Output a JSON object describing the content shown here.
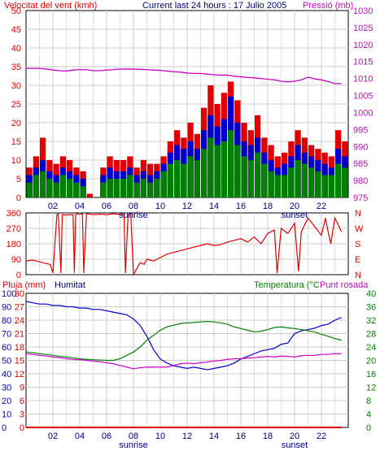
{
  "header": {
    "wind_title": "Velocitat del vent (kmh)",
    "center_title": "Current last 24 hours : 17 Julio 2005",
    "pressure_title": "Pressió (mb)"
  },
  "footer": {
    "rain_title": "Pluja (mm)",
    "humidity_title": "Humitat",
    "temp_title": "Temperatura (°C",
    "dew_title": "Punt rosada"
  },
  "colors": {
    "red": "#e00000",
    "green": "#008000",
    "blue": "#0000cc",
    "magenta": "#cc00cc",
    "grid": "#cccccc",
    "frame": "#000000"
  },
  "chart_data": [
    {
      "id": "wind_pressure",
      "type": "bar",
      "title": "Current last 24 hours : 17 Julio 2005",
      "x_ticks": [
        "02",
        "04",
        "06",
        "08",
        "10",
        "12",
        "14",
        "16",
        "18",
        "20",
        "22"
      ],
      "x_annotations": [
        {
          "hour": 8,
          "label": "sunrise"
        },
        {
          "hour": 20,
          "label": "sunset"
        }
      ],
      "xlim": [
        0,
        24
      ],
      "y_left": {
        "label": "Velocitat del vent (kmh)",
        "ylim": [
          0,
          50
        ],
        "ticks": [
          0,
          5,
          10,
          15,
          20,
          25,
          30,
          35,
          40,
          45,
          50
        ]
      },
      "y_right": {
        "label": "Pressió (mb)",
        "ylim": [
          975,
          1030
        ],
        "ticks": [
          975,
          980,
          985,
          990,
          995,
          1000,
          1005,
          1010,
          1015,
          1020,
          1025,
          1030
        ]
      },
      "x": [
        0,
        0.5,
        1,
        1.5,
        2,
        2.5,
        3,
        3.5,
        4,
        4.5,
        5,
        5.5,
        6,
        6.5,
        7,
        7.5,
        8,
        8.5,
        9,
        9.5,
        10,
        10.5,
        11,
        11.5,
        12,
        12.5,
        13,
        13.5,
        14,
        14.5,
        15,
        15.5,
        16,
        16.5,
        17,
        17.5,
        18,
        18.5,
        19,
        19.5,
        20,
        20.5,
        21,
        21.5,
        22,
        22.5,
        23,
        23.5
      ],
      "series": [
        {
          "name": "gust",
          "axis": "left",
          "color": "#e00000",
          "values": [
            8,
            11,
            16,
            10,
            9,
            11,
            10,
            8,
            7,
            1,
            0,
            8,
            11,
            10,
            10,
            11,
            8,
            10,
            9,
            9,
            11,
            15,
            18,
            16,
            20,
            17,
            24,
            30,
            25,
            28,
            31,
            26,
            20,
            18,
            22,
            16,
            14,
            11,
            12,
            15,
            18,
            16,
            14,
            13,
            12,
            11,
            18,
            15
          ]
        },
        {
          "name": "average",
          "axis": "left",
          "color": "#0000cc",
          "values": [
            6,
            8,
            10,
            7,
            6,
            8,
            7,
            6,
            5,
            0,
            0,
            6,
            8,
            7,
            7,
            8,
            6,
            7,
            6,
            7,
            9,
            12,
            14,
            13,
            15,
            13,
            18,
            22,
            19,
            21,
            27,
            20,
            15,
            14,
            16,
            12,
            10,
            8,
            9,
            11,
            14,
            12,
            11,
            10,
            9,
            8,
            13,
            11
          ]
        },
        {
          "name": "low",
          "axis": "left",
          "color": "#008000",
          "values": [
            4,
            6,
            7,
            5,
            4,
            6,
            5,
            4,
            3,
            0,
            0,
            4,
            5,
            5,
            5,
            6,
            4,
            5,
            4,
            5,
            7,
            9,
            10,
            9,
            11,
            10,
            13,
            16,
            14,
            15,
            18,
            14,
            11,
            10,
            12,
            9,
            7,
            6,
            6,
            8,
            10,
            9,
            8,
            7,
            6,
            6,
            9,
            8
          ]
        },
        {
          "name": "pressure",
          "axis": "right",
          "color": "#cc00cc",
          "type": "line",
          "values": [
            1013,
            1013,
            1013,
            1012.8,
            1012.5,
            1012.3,
            1012.2,
            1012.5,
            1012.6,
            1012.6,
            1012.3,
            1012.3,
            1012.5,
            1012.6,
            1012.8,
            1012.8,
            1012.8,
            1012.7,
            1012.6,
            1012.5,
            1012.4,
            1012.2,
            1012.0,
            1011.9,
            1011.6,
            1011.5,
            1011.5,
            1011.3,
            1011.1,
            1011.0,
            1011.0,
            1010.7,
            1010.5,
            1010.3,
            1010.2,
            1010.0,
            1009.8,
            1009.6,
            1009.2,
            1009.0,
            1009.2,
            1009.6,
            1010.4,
            1009.9,
            1009.6,
            1009.1,
            1008.5,
            1008.5
          ]
        }
      ]
    },
    {
      "id": "wind_direction",
      "type": "line",
      "xlim": [
        0,
        24
      ],
      "y_left": {
        "ylim": [
          0,
          360
        ],
        "ticks": [
          0,
          90,
          180,
          270,
          360
        ]
      },
      "y_right_labels": [
        "N",
        "W",
        "S",
        "E",
        "N"
      ],
      "series": [
        {
          "name": "direction",
          "color": "#e00000",
          "x": [
            0,
            0.5,
            1,
            1.5,
            1.8,
            2,
            2.3,
            2.4,
            2.6,
            2.7,
            3,
            3.5,
            3.6,
            3.7,
            3.8,
            4,
            4.2,
            4.3,
            4.5,
            5,
            5.5,
            6,
            6.5,
            7,
            7.3,
            7.4,
            7.6,
            7.8,
            8,
            8.5,
            8.8,
            9,
            9.5,
            10,
            10.5,
            11,
            11.5,
            12,
            12.5,
            13,
            13.5,
            14,
            14.5,
            15,
            15.5,
            16,
            16.5,
            17,
            17.5,
            18,
            18.5,
            18.7,
            19,
            19.5,
            20,
            20.3,
            20.5,
            21,
            21.5,
            22,
            22.3,
            22.5,
            22.7,
            23,
            23.5
          ],
          "values": [
            80,
            85,
            75,
            65,
            60,
            10,
            350,
            355,
            10,
            350,
            348,
            350,
            10,
            350,
            355,
            352,
            355,
            10,
            355,
            350,
            352,
            350,
            355,
            350,
            352,
            10,
            350,
            355,
            0,
            70,
            60,
            90,
            80,
            100,
            120,
            130,
            140,
            150,
            160,
            170,
            180,
            170,
            175,
            190,
            200,
            210,
            190,
            220,
            180,
            240,
            260,
            10,
            270,
            240,
            300,
            20,
            250,
            330,
            280,
            230,
            330,
            250,
            180,
            330,
            250
          ]
        }
      ]
    },
    {
      "id": "temp_humidity_rain",
      "type": "line",
      "x_ticks": [
        "02",
        "04",
        "06",
        "08",
        "10",
        "12",
        "14",
        "16",
        "18",
        "20",
        "22"
      ],
      "x_annotations": [
        {
          "hour": 8,
          "label": "sunrise"
        },
        {
          "hour": 20,
          "label": "sunset"
        }
      ],
      "xlim": [
        0,
        24
      ],
      "y_left_rain": {
        "label": "Pluja (mm)",
        "ylim": [
          0,
          30
        ],
        "ticks": [
          0,
          3,
          6,
          9,
          12,
          15,
          18,
          21,
          24,
          27,
          30
        ]
      },
      "y_left_humidity": {
        "label": "Humitat",
        "ylim": [
          0,
          100
        ],
        "ticks": [
          0,
          10,
          20,
          30,
          40,
          50,
          60,
          70,
          80,
          90,
          100
        ]
      },
      "y_right": {
        "label": "Temperatura (°C",
        "ylim": [
          0,
          40
        ],
        "ticks": [
          0,
          4,
          8,
          12,
          16,
          20,
          24,
          28,
          32,
          36,
          40
        ]
      },
      "x": [
        0,
        0.5,
        1,
        1.5,
        2,
        2.5,
        3,
        3.5,
        4,
        4.5,
        5,
        5.5,
        6,
        6.5,
        7,
        7.5,
        8,
        8.5,
        9,
        9.5,
        10,
        10.5,
        11,
        11.5,
        12,
        12.5,
        13,
        13.5,
        14,
        14.5,
        15,
        15.5,
        16,
        16.5,
        17,
        17.5,
        18,
        18.5,
        19,
        19.5,
        20,
        20.5,
        21,
        21.5,
        22,
        22.5,
        23,
        23.5
      ],
      "series": [
        {
          "name": "Humitat",
          "axis": "humidity",
          "color": "#0000cc",
          "values": [
            94,
            93,
            92,
            92,
            91,
            91,
            90,
            90,
            89,
            89,
            88,
            88,
            87,
            86,
            85,
            84,
            81,
            76,
            68,
            58,
            51,
            48,
            46,
            45,
            44,
            45,
            44,
            43,
            44,
            45,
            46,
            48,
            51,
            53,
            55,
            57,
            58,
            59,
            62,
            63,
            70,
            72,
            73,
            74,
            76,
            77,
            80,
            82
          ]
        },
        {
          "name": "Temperatura (°C",
          "axis": "right",
          "color": "#008000",
          "values": [
            22.5,
            22.3,
            22,
            21.8,
            21.5,
            21.2,
            21,
            20.8,
            20.5,
            20.3,
            20.2,
            20.1,
            20,
            20,
            20.5,
            21.5,
            22.5,
            24,
            26,
            27.5,
            29,
            30,
            30.5,
            31,
            31.2,
            31.3,
            31.5,
            31.6,
            31.5,
            31.2,
            30.8,
            30,
            29.5,
            29,
            28.5,
            28.7,
            29.2,
            29.8,
            30,
            29.7,
            29.5,
            29.2,
            28.8,
            28.5,
            27.8,
            27.2,
            26.5,
            26
          ]
        },
        {
          "name": "Punt rosada",
          "axis": "right",
          "color": "#cc00cc",
          "values": [
            22,
            21.8,
            21.5,
            21.3,
            21,
            20.8,
            20.5,
            20.3,
            20.2,
            20,
            19.8,
            19.6,
            19.3,
            19,
            18.5,
            18,
            17.5,
            17.8,
            18,
            18,
            18,
            18,
            18.5,
            19,
            19.2,
            19,
            19.3,
            19.5,
            19.8,
            20,
            20.3,
            20.5,
            20.5,
            20.7,
            20.8,
            21,
            21.2,
            21,
            21.3,
            21.2,
            21,
            21.4,
            21.5,
            21.5,
            21.8,
            21.8,
            22,
            22
          ]
        },
        {
          "name": "Pluja (mm)",
          "axis": "rain",
          "color": "#e00000",
          "values": [
            0,
            0,
            0,
            0,
            0,
            0,
            0,
            0,
            0,
            0,
            0,
            0,
            0,
            0,
            0,
            0,
            0,
            0,
            0,
            0,
            0,
            0,
            0,
            0,
            0,
            0,
            0,
            0,
            0,
            0,
            0,
            0,
            0,
            0,
            0,
            0,
            0,
            0,
            0,
            0,
            0,
            0,
            0,
            0,
            0,
            0,
            0,
            0
          ]
        }
      ]
    }
  ]
}
